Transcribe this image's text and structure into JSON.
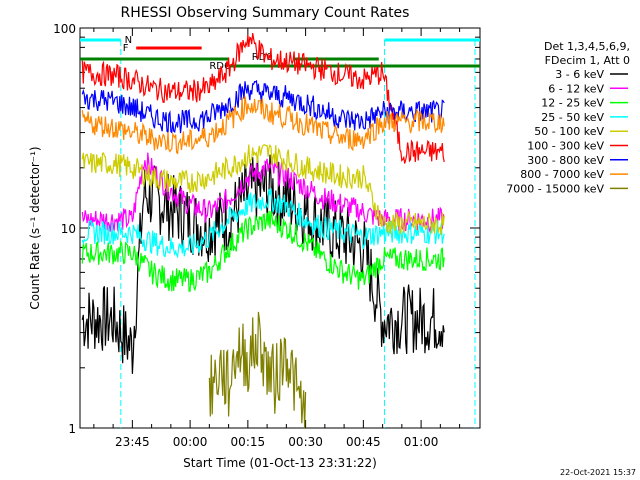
{
  "chart_data": {
    "type": "line",
    "title": "RHESSI Observing Summary Count Rates",
    "xlabel": "Start Time (01-Oct-13 23:31:22)",
    "ylabel": "Count Rate (s⁻¹ detector⁻¹)",
    "y_scale": "log",
    "ylim": [
      1,
      100
    ],
    "xlim_minutes": [
      -28.6,
      75.3
    ],
    "x_ticks": [
      {
        "label": "23:45",
        "minute": -15
      },
      {
        "label": "00:00",
        "minute": 0
      },
      {
        "label": "00:15",
        "minute": 15
      },
      {
        "label": "00:30",
        "minute": 30
      },
      {
        "label": "00:45",
        "minute": 45
      },
      {
        "label": "01:00",
        "minute": 60
      }
    ],
    "y_ticks": [
      {
        "label": "1",
        "value": 1
      },
      {
        "label": "10",
        "value": 10
      },
      {
        "label": "100",
        "value": 100
      }
    ],
    "legend_header": [
      "Det 1,3,4,5,6,9,",
      "FDecim 1, Att 0"
    ],
    "legend_placement": "right",
    "footer_timestamp": "22-Oct-2021 15:37",
    "series": [
      {
        "name": "3 - 6 keV",
        "color": "#000000",
        "x": [
          -28,
          -20,
          -15,
          -12,
          -6,
          0,
          4,
          10,
          15,
          20,
          25,
          30,
          35,
          40,
          45,
          50,
          55,
          62,
          66
        ],
        "y": [
          3.5,
          3.5,
          2.5,
          15,
          13,
          11,
          10,
          11,
          15,
          16,
          14,
          12,
          10,
          9,
          8,
          3.5,
          3.5,
          3.5,
          3.5
        ]
      },
      {
        "name": "6 - 12 keV",
        "color": "#ff00ff",
        "x": [
          -28,
          -20,
          -15,
          -12,
          -6,
          0,
          5,
          10,
          15,
          20,
          25,
          30,
          35,
          40,
          45,
          50,
          55,
          62,
          66
        ],
        "y": [
          11,
          11,
          11,
          22,
          16,
          13,
          12,
          14,
          18,
          20,
          18,
          16,
          14,
          13,
          12,
          11,
          11,
          11,
          11
        ]
      },
      {
        "name": "12 - 25 keV",
        "color": "#00ff00",
        "x": [
          -28,
          -20,
          -15,
          -10,
          -5,
          0,
          5,
          10,
          15,
          20,
          25,
          30,
          35,
          40,
          45,
          50,
          55,
          62,
          66
        ],
        "y": [
          7.5,
          7.5,
          7.5,
          6,
          5.5,
          5.5,
          6,
          8,
          10,
          11,
          10,
          8.5,
          7,
          6,
          5.5,
          7,
          7,
          7,
          7
        ]
      },
      {
        "name": "25 - 50 keV",
        "color": "#00ffff",
        "x": [
          -28,
          -20,
          -15,
          -10,
          -5,
          0,
          5,
          10,
          15,
          20,
          25,
          30,
          35,
          40,
          45,
          50,
          55,
          62,
          66
        ],
        "y": [
          9.5,
          9.5,
          9.5,
          8.5,
          8,
          8,
          9,
          11,
          13,
          14,
          13,
          11,
          10,
          9.5,
          9,
          9.5,
          9.5,
          9.5,
          9.5
        ]
      },
      {
        "name": "50 - 100 keV",
        "color": "#cccc00",
        "x": [
          -28,
          -20,
          -15,
          -10,
          -5,
          0,
          5,
          10,
          15,
          20,
          25,
          30,
          35,
          40,
          45,
          50,
          55,
          62,
          66
        ],
        "y": [
          21,
          21,
          20,
          18,
          17,
          17,
          18,
          20,
          23,
          24,
          22,
          20,
          19,
          18,
          18,
          10.5,
          10.5,
          10.5,
          10.5
        ]
      },
      {
        "name": "100 - 300 keV",
        "color": "#ff0000",
        "x": [
          -28,
          -20,
          -15,
          -10,
          -5,
          0,
          5,
          10,
          15,
          20,
          25,
          30,
          35,
          40,
          45,
          50,
          55,
          62,
          66
        ],
        "y": [
          60,
          58,
          55,
          50,
          48,
          48,
          50,
          62,
          90,
          70,
          68,
          65,
          62,
          58,
          55,
          60,
          24,
          24,
          24
        ]
      },
      {
        "name": "300 - 800 keV",
        "color": "#0000ff",
        "x": [
          -28,
          -20,
          -15,
          -10,
          -5,
          0,
          5,
          10,
          15,
          20,
          25,
          30,
          35,
          40,
          45,
          50,
          55,
          62,
          66
        ],
        "y": [
          45,
          43,
          40,
          36,
          34,
          34,
          36,
          42,
          50,
          47,
          45,
          42,
          38,
          35,
          34,
          38,
          38,
          38,
          38
        ]
      },
      {
        "name": "800 - 7000 keV",
        "color": "#ff8800",
        "x": [
          -28,
          -20,
          -15,
          -10,
          -5,
          0,
          5,
          10,
          15,
          20,
          25,
          30,
          35,
          40,
          45,
          50,
          55,
          62,
          66
        ],
        "y": [
          34,
          32,
          30,
          28,
          27,
          27,
          29,
          34,
          42,
          38,
          36,
          33,
          30,
          28,
          28,
          34,
          34,
          34,
          34
        ]
      },
      {
        "name": "7000 - 15000 keV",
        "color": "#808000",
        "x": [
          5,
          8,
          10,
          12,
          15,
          18,
          20,
          22,
          25,
          28,
          30
        ],
        "y": [
          1.5,
          2,
          1.6,
          2.5,
          2.2,
          2.8,
          2,
          1.7,
          2.5,
          1.4,
          1.2
        ]
      }
    ],
    "annotations": [
      {
        "text": "N",
        "color": "#00ffff"
      },
      {
        "text": "F",
        "color": "#ff0000"
      },
      {
        "text": "RD0",
        "color": "#008000"
      },
      {
        "text": "RD6",
        "color": "#008000"
      }
    ],
    "grid": false
  }
}
